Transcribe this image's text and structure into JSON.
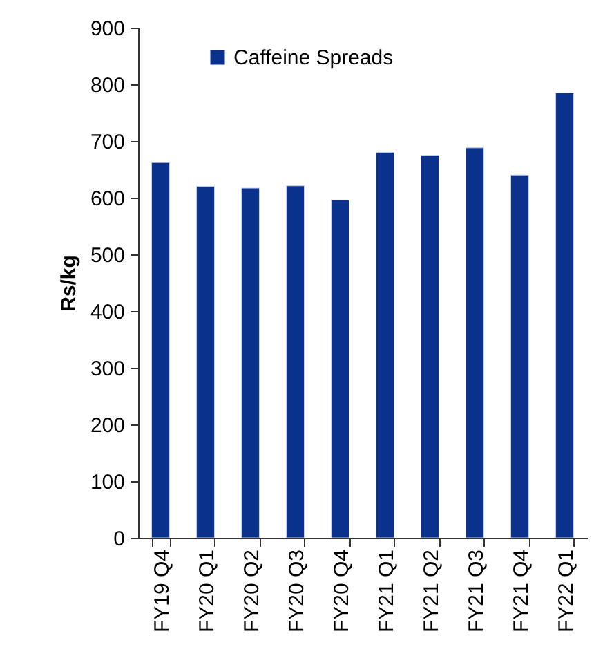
{
  "chart_data": {
    "type": "bar",
    "ylabel": "Rs/kg",
    "categories": [
      "FY19 Q4",
      "FY20 Q1",
      "FY20 Q2",
      "FY20 Q3",
      "FY20 Q4",
      "FY21 Q1",
      "FY21 Q2",
      "FY21 Q3",
      "FY21 Q4",
      "FY22 Q1"
    ],
    "series": [
      {
        "name": "Caffeine Spreads",
        "color": "#0a318c",
        "values": [
          662,
          620,
          617,
          621,
          596,
          680,
          675,
          688,
          640,
          785
        ]
      }
    ],
    "ylim": [
      0,
      900
    ],
    "yticks": [
      0,
      100,
      200,
      300,
      400,
      500,
      600,
      700,
      800,
      900
    ],
    "legend": "top left",
    "grid": false
  }
}
